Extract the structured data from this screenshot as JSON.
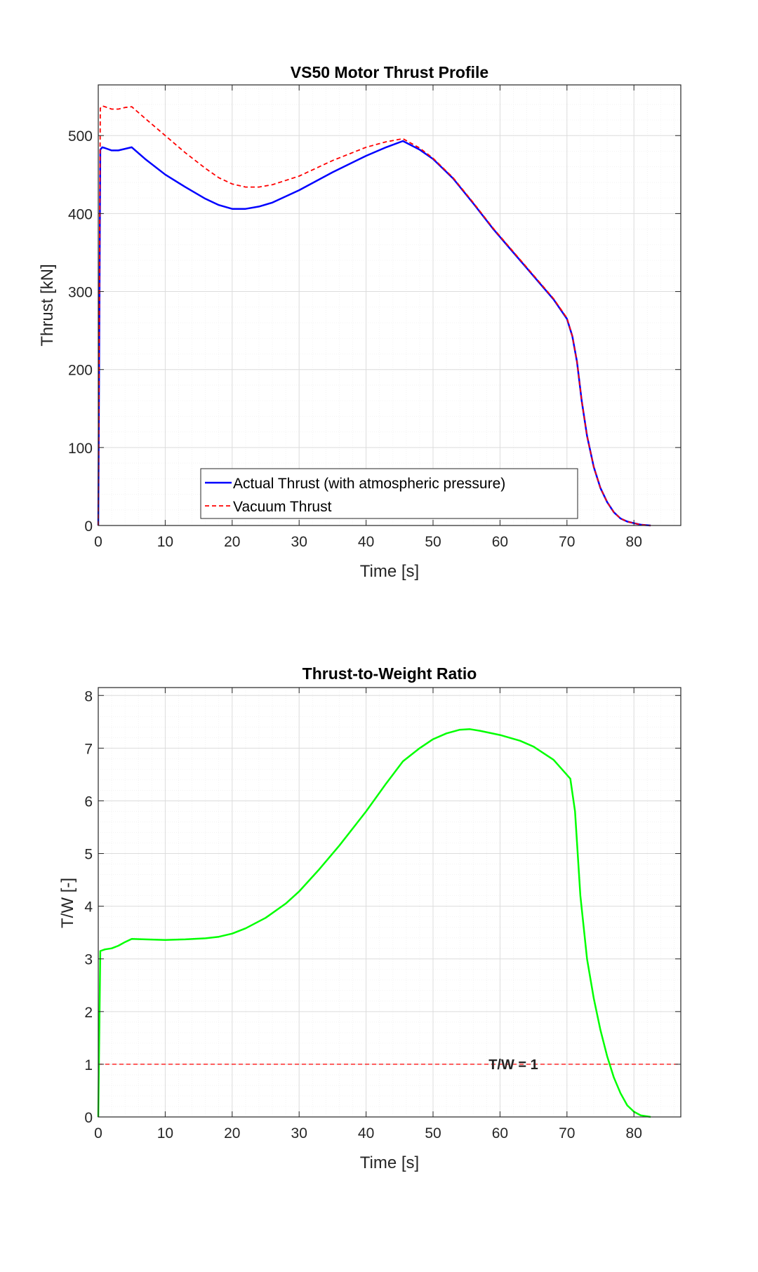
{
  "chart_data": [
    {
      "type": "line",
      "title": "VS50 Motor Thrust Profile",
      "xlabel": "Time [s]",
      "ylabel": "Thrust [kN]",
      "xlim": [
        0,
        87
      ],
      "ylim": [
        0,
        565
      ],
      "xticks": [
        0,
        10,
        20,
        30,
        40,
        50,
        60,
        70,
        80
      ],
      "yticks": [
        0,
        100,
        200,
        300,
        400,
        500
      ],
      "grid": true,
      "minor_grid": true,
      "legend_position": "bottom-center",
      "series": [
        {
          "name": "Actual Thrust (with atmospheric pressure)",
          "color": "#0000FF",
          "style": "solid",
          "x": [
            0,
            0.3,
            0.6,
            1,
            2,
            3,
            4,
            5,
            7,
            10,
            13,
            16,
            18,
            20,
            22,
            24,
            26,
            30,
            35,
            40,
            43,
            45.5,
            48,
            50,
            53,
            56,
            59,
            62,
            65,
            68,
            70,
            70.8,
            71.5,
            72.2,
            73,
            74,
            75,
            76,
            77,
            78,
            79,
            80,
            81,
            82.5
          ],
          "y": [
            0,
            482,
            485,
            484,
            481,
            481,
            483,
            485,
            470,
            450,
            434,
            419,
            411,
            406,
            406,
            409,
            414,
            430,
            453,
            474,
            485,
            493,
            482,
            470,
            445,
            413,
            380,
            350,
            320,
            290,
            265,
            243,
            210,
            160,
            115,
            75,
            48,
            30,
            17,
            9,
            5,
            3,
            1,
            0
          ]
        },
        {
          "name": "Vacuum Thrust",
          "color": "#FF0000",
          "style": "dashed",
          "x": [
            0,
            0.3,
            0.6,
            1,
            2,
            3,
            4,
            5,
            7,
            10,
            13,
            16,
            18,
            20,
            22,
            24,
            26,
            30,
            35,
            40,
            43,
            45.5,
            48,
            50,
            53,
            56,
            59,
            62,
            65,
            68,
            70,
            70.8,
            71.5,
            72.2,
            73,
            74,
            75,
            76,
            77,
            78,
            79,
            80,
            81,
            82.5
          ],
          "y": [
            0,
            535,
            538,
            537,
            534,
            534,
            536,
            537,
            522,
            500,
            478,
            458,
            446,
            438,
            434,
            434,
            437,
            448,
            468,
            485,
            492,
            496,
            484,
            471,
            446,
            414,
            381,
            351,
            321,
            291,
            266,
            243,
            210,
            160,
            115,
            75,
            48,
            30,
            17,
            9,
            5,
            3,
            1,
            0
          ]
        }
      ]
    },
    {
      "type": "line",
      "title": "Thrust-to-Weight Ratio",
      "xlabel": "Time [s]",
      "ylabel": "T/W [-]",
      "xlim": [
        0,
        87
      ],
      "ylim": [
        0,
        8.15
      ],
      "xticks": [
        0,
        10,
        20,
        30,
        40,
        50,
        60,
        70,
        80
      ],
      "yticks": [
        0,
        1,
        2,
        3,
        4,
        5,
        6,
        7,
        8
      ],
      "grid": true,
      "minor_grid": true,
      "series": [
        {
          "color": "#00FF00",
          "style": "solid",
          "x": [
            0,
            0.3,
            1,
            2,
            3,
            4,
            5,
            7,
            10,
            13,
            16,
            18,
            20,
            22,
            25,
            28,
            30,
            33,
            36,
            40,
            43,
            45.5,
            48,
            50,
            52,
            54,
            55.5,
            57,
            60,
            63,
            65,
            68,
            70.5,
            71.2,
            72,
            73,
            74,
            75,
            76,
            77,
            78,
            79,
            80,
            81,
            82.5
          ],
          "y": [
            0,
            3.15,
            3.18,
            3.2,
            3.25,
            3.32,
            3.38,
            3.37,
            3.36,
            3.37,
            3.39,
            3.42,
            3.48,
            3.58,
            3.78,
            4.05,
            4.28,
            4.7,
            5.15,
            5.8,
            6.33,
            6.75,
            7.0,
            7.17,
            7.28,
            7.35,
            7.36,
            7.33,
            7.25,
            7.14,
            7.03,
            6.78,
            6.42,
            5.8,
            4.2,
            3.0,
            2.25,
            1.65,
            1.15,
            0.75,
            0.45,
            0.22,
            0.1,
            0.03,
            0
          ]
        }
      ],
      "reference_line": {
        "y": 1,
        "color": "#FF0000",
        "style": "dashed",
        "label": "T/W = 1",
        "label_x": 62
      }
    }
  ]
}
